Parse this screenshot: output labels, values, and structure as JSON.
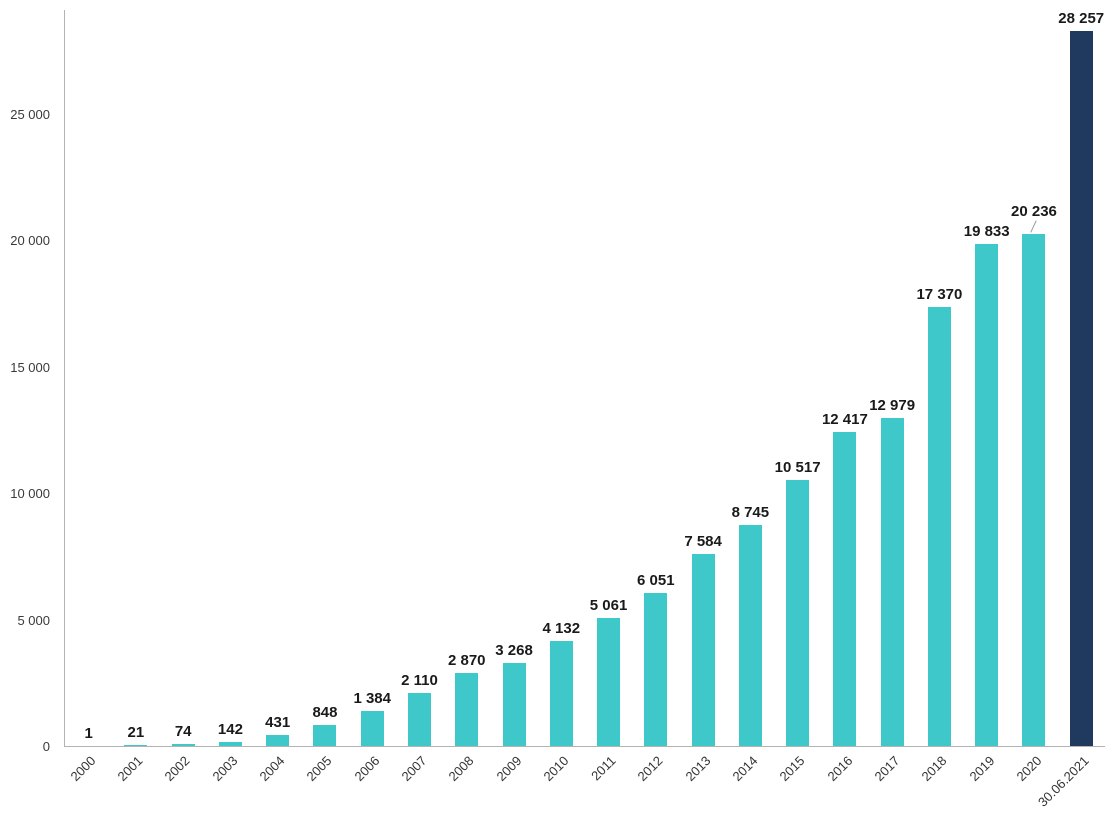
{
  "chart_data": {
    "type": "bar",
    "title": "",
    "xlabel": "",
    "ylabel": "",
    "categories": [
      "2000",
      "2001",
      "2002",
      "2003",
      "2004",
      "2005",
      "2006",
      "2007",
      "2008",
      "2009",
      "2010",
      "2011",
      "2012",
      "2013",
      "2014",
      "2015",
      "2016",
      "2017",
      "2018",
      "2019",
      "2020",
      "30.06.2021"
    ],
    "values": [
      1,
      21,
      74,
      142,
      431,
      848,
      1384,
      2110,
      2870,
      3268,
      4132,
      5061,
      6051,
      7584,
      8745,
      10517,
      12417,
      12979,
      17370,
      19833,
      20236,
      28257
    ],
    "labels": [
      "1",
      "21",
      "74",
      "142",
      "431",
      "848",
      "1 384",
      "2 110",
      "2 870",
      "3 268",
      "4 132",
      "5 061",
      "6 051",
      "7 584",
      "8 745",
      "10 517",
      "12 417",
      "12 979",
      "17 370",
      "19 833",
      "20 236",
      "28 257"
    ],
    "ylim": [
      0,
      28257
    ],
    "yticks": [
      0,
      5000,
      10000,
      15000,
      20000,
      25000
    ],
    "ytick_labels": [
      "0",
      "5 000",
      "10 000",
      "15 000",
      "20 000",
      "25 000"
    ],
    "bar_color": "#3ec8ca",
    "highlight_color": "#20395f",
    "highlight_index": 21,
    "raised_label_indices": [
      20
    ],
    "grid": false,
    "legend": null
  }
}
